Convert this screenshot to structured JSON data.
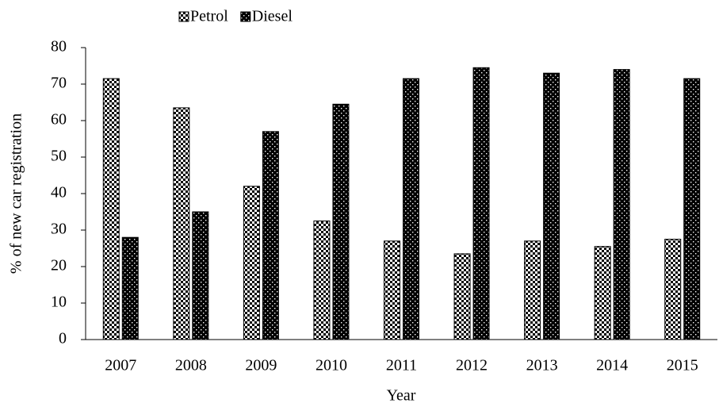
{
  "chart_data": {
    "type": "bar",
    "x_label": "Year",
    "y_label": "% of new car registration",
    "categories": [
      "2007",
      "2008",
      "2009",
      "2010",
      "2011",
      "2012",
      "2013",
      "2014",
      "2015"
    ],
    "series": [
      {
        "name": "Petrol",
        "color": "#000000",
        "values": [
          71.5,
          63.5,
          42,
          32.5,
          27,
          23.5,
          27,
          25.5,
          27.5
        ]
      },
      {
        "name": "Diesel",
        "color": "#000000",
        "values": [
          28,
          35,
          57,
          64.5,
          71.5,
          74.5,
          73,
          74,
          71.5
        ]
      }
    ],
    "ylim": [
      0,
      80
    ],
    "yticks": [
      0,
      10,
      20,
      30,
      40,
      50,
      60,
      70,
      80
    ],
    "legend": "top",
    "grid": false
  }
}
